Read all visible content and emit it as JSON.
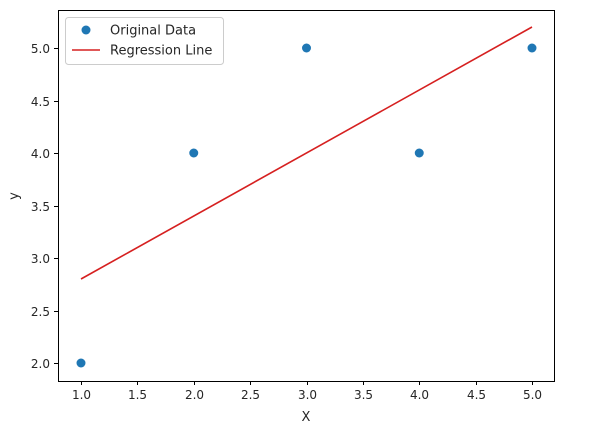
{
  "chart_data": {
    "type": "scatter",
    "title": "",
    "xlabel": "X",
    "ylabel": "y",
    "xlim": [
      0.8,
      5.2
    ],
    "ylim": [
      1.82,
      5.35
    ],
    "grid": false,
    "legend_position": "upper left",
    "x_ticks": [
      1.0,
      1.5,
      2.0,
      2.5,
      3.0,
      3.5,
      4.0,
      4.5,
      5.0
    ],
    "x_tick_labels": [
      "1.0",
      "1.5",
      "2.0",
      "2.5",
      "3.0",
      "3.5",
      "4.0",
      "4.5",
      "5.0"
    ],
    "y_ticks": [
      2.0,
      2.5,
      3.0,
      3.5,
      4.0,
      4.5,
      5.0
    ],
    "y_tick_labels": [
      "2.0",
      "2.5",
      "3.0",
      "3.5",
      "4.0",
      "4.5",
      "5.0"
    ],
    "series": [
      {
        "name": "Original Data",
        "type": "scatter",
        "color": "#1f77b4",
        "x": [
          1,
          2,
          3,
          4,
          5
        ],
        "y": [
          2,
          4,
          5,
          4,
          5
        ]
      },
      {
        "name": "Regression Line",
        "type": "line",
        "color": "#d62020",
        "x": [
          1,
          5
        ],
        "y": [
          2.8,
          5.2
        ]
      }
    ]
  },
  "legend": {
    "items": [
      {
        "label": "Original Data"
      },
      {
        "label": "Regression Line"
      }
    ]
  }
}
